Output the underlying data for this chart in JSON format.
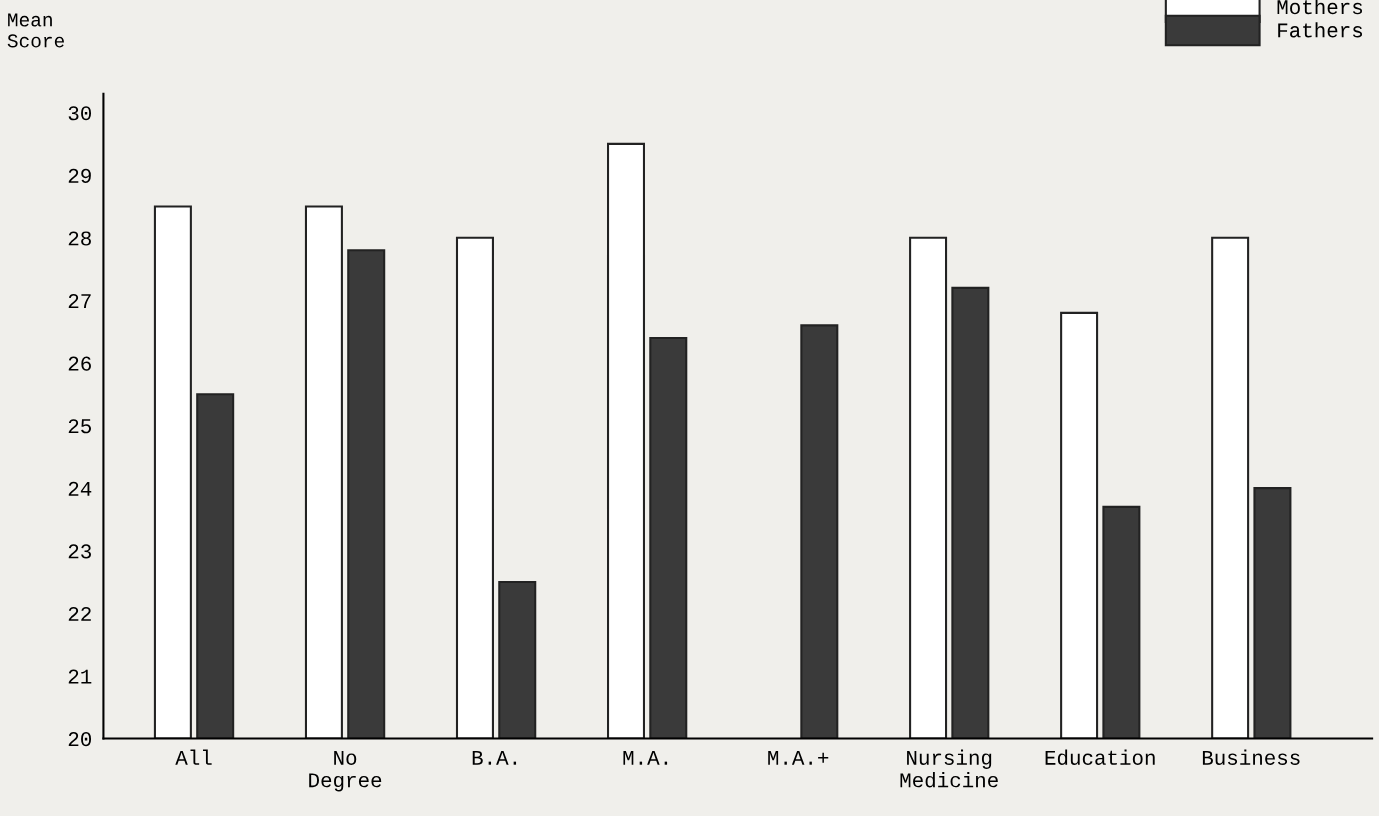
{
  "chart_data": {
    "type": "bar",
    "ylabel": "Mean\nScore",
    "categories": [
      "All",
      "No\nDegree",
      "B.A.",
      "M.A.",
      "M.A.+",
      "Nursing\nMedicine",
      "Education",
      "Business"
    ],
    "series": [
      {
        "name": "Mothers",
        "color": "#ffffff",
        "values": [
          28.5,
          28.5,
          28.0,
          29.5,
          null,
          28.0,
          26.8,
          28.0
        ]
      },
      {
        "name": "Fathers",
        "color": "#3a3a3a",
        "values": [
          25.5,
          27.8,
          22.5,
          26.4,
          26.6,
          27.2,
          23.7,
          24.0
        ]
      }
    ],
    "ylim": [
      20,
      30.3
    ],
    "yticks": [
      20,
      21,
      22,
      23,
      24,
      25,
      26,
      27,
      28,
      29,
      30
    ],
    "grid": false,
    "legend": "top right"
  }
}
